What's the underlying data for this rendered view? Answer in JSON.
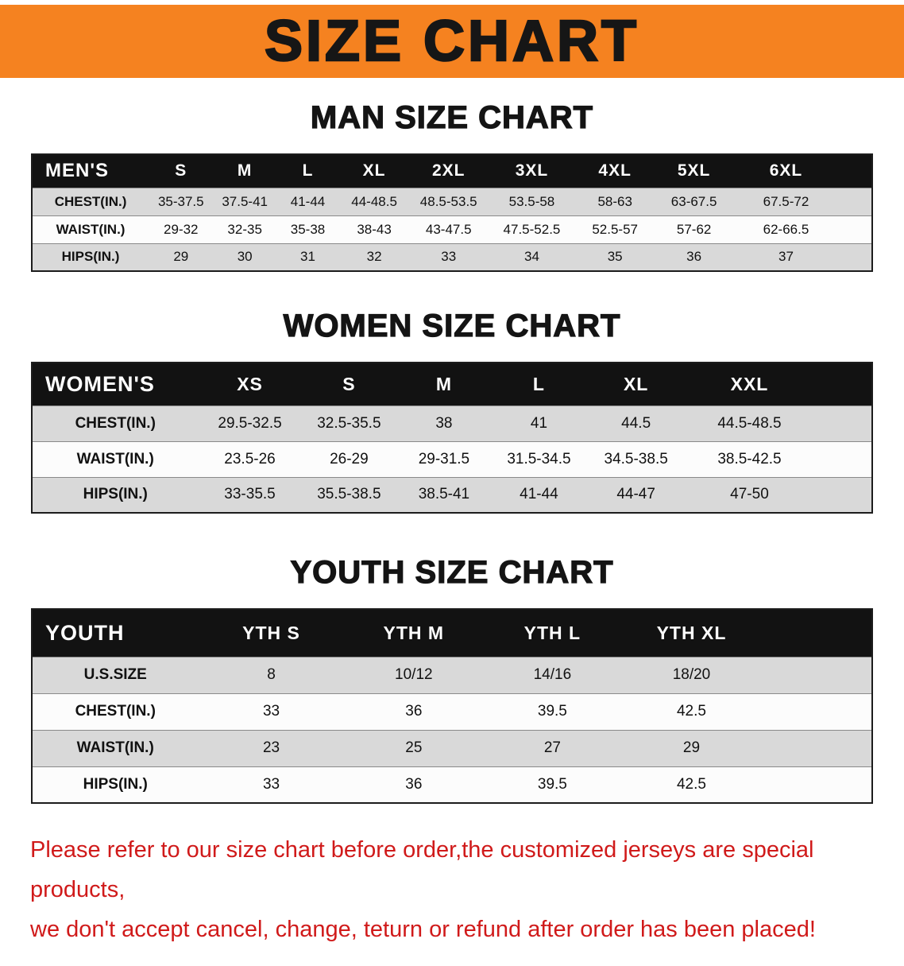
{
  "banner": {
    "title": "SIZE CHART",
    "bg_color": "#F58220"
  },
  "sections": [
    {
      "heading": "MAN SIZE CHART",
      "table": {
        "corner": "MEN'S",
        "columns": [
          "S",
          "M",
          "L",
          "XL",
          "2XL",
          "3XL",
          "4XL",
          "5XL",
          "6XL"
        ],
        "rows": [
          {
            "label": "CHEST(IN.)",
            "values": [
              "35-37.5",
              "37.5-41",
              "41-44",
              "44-48.5",
              "48.5-53.5",
              "53.5-58",
              "58-63",
              "63-67.5",
              "67.5-72"
            ]
          },
          {
            "label": "WAIST(IN.)",
            "values": [
              "29-32",
              "32-35",
              "35-38",
              "38-43",
              "43-47.5",
              "47.5-52.5",
              "52.5-57",
              "57-62",
              "62-66.5"
            ]
          },
          {
            "label": "HIPS(IN.)",
            "values": [
              "29",
              "30",
              "31",
              "32",
              "33",
              "34",
              "35",
              "36",
              "37"
            ]
          }
        ]
      }
    },
    {
      "heading": "WOMEN SIZE CHART",
      "table": {
        "corner": "WOMEN'S",
        "columns": [
          "XS",
          "S",
          "M",
          "L",
          "XL",
          "XXL"
        ],
        "rows": [
          {
            "label": "CHEST(IN.)",
            "values": [
              "29.5-32.5",
              "32.5-35.5",
              "38",
              "41",
              "44.5",
              "44.5-48.5"
            ]
          },
          {
            "label": "WAIST(IN.)",
            "values": [
              "23.5-26",
              "26-29",
              "29-31.5",
              "31.5-34.5",
              "34.5-38.5",
              "38.5-42.5"
            ]
          },
          {
            "label": "HIPS(IN.)",
            "values": [
              "33-35.5",
              "35.5-38.5",
              "38.5-41",
              "41-44",
              "44-47",
              "47-50"
            ]
          }
        ]
      }
    },
    {
      "heading": "YOUTH SIZE CHART",
      "table": {
        "corner": "YOUTH",
        "columns": [
          "YTH S",
          "YTH M",
          "YTH L",
          "YTH XL"
        ],
        "rows": [
          {
            "label": "U.S.SIZE",
            "values": [
              "8",
              "10/12",
              "14/16",
              "18/20"
            ]
          },
          {
            "label": "CHEST(IN.)",
            "values": [
              "33",
              "36",
              "39.5",
              "42.5"
            ]
          },
          {
            "label": "WAIST(IN.)",
            "values": [
              "23",
              "25",
              "27",
              "29"
            ]
          },
          {
            "label": "HIPS(IN.)",
            "values": [
              "33",
              "36",
              "39.5",
              "42.5"
            ]
          }
        ]
      }
    }
  ],
  "footer": {
    "line1": "Please refer to our size chart before order,the customized jerseys are special products,",
    "line2": "we don't accept cancel, change, teturn or refund after order has been placed!",
    "text_color": "#d01a1a"
  }
}
